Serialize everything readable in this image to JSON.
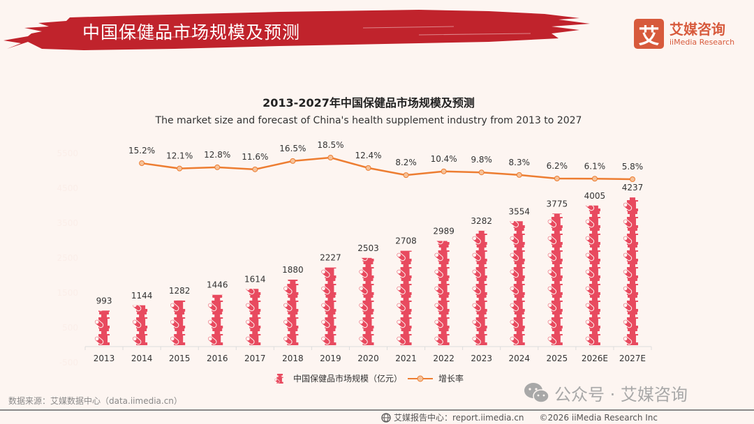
{
  "header": {
    "title": "中国保健品市场规模及预测",
    "brand_color": "#c0232c"
  },
  "logo": {
    "mark": "艾",
    "name_cn": "艾媒咨询",
    "name_en": "iiMedia Research",
    "color": "#d75a3c"
  },
  "chart_data": {
    "type": "bar+line",
    "title": "2013-2027年中国保健品市场规模及预测",
    "subtitle": "The market size and forecast of China's health supplement industry from 2013 to 2027",
    "categories": [
      "2013",
      "2014",
      "2015",
      "2016",
      "2017",
      "2018",
      "2019",
      "2020",
      "2021",
      "2022",
      "2023",
      "2024",
      "2025",
      "2026E",
      "2027E"
    ],
    "series": [
      {
        "name": "中国保健品市场规模（亿元）",
        "type": "pictorial-bar",
        "color": "#e84a5f",
        "values": [
          993,
          1144,
          1282,
          1446,
          1614,
          1880,
          2227,
          2503,
          2708,
          2989,
          3282,
          3554,
          3775,
          4005,
          4237
        ]
      },
      {
        "name": "增长率",
        "type": "line",
        "color": "#ed7d31",
        "values": [
          null,
          15.2,
          12.1,
          12.8,
          11.6,
          16.5,
          18.5,
          12.4,
          8.2,
          10.4,
          9.8,
          8.3,
          6.2,
          6.1,
          5.8
        ],
        "labels": [
          "",
          "15.2%",
          "12.1%",
          "12.8%",
          "11.6%",
          "16.5%",
          "18.5%",
          "12.4%",
          "8.2%",
          "10.4%",
          "9.8%",
          "8.3%",
          "6.2%",
          "6.1%",
          "5.8%"
        ]
      }
    ],
    "yaxis_ticks": [
      "5500",
      "4500",
      "3500",
      "2500",
      "1500",
      "500",
      "-500"
    ],
    "ylim": [
      -500,
      5500
    ],
    "legend": "bottom-center",
    "grid": false
  },
  "footer": {
    "source": "数据来源：艾媒数据中心（data.iimedia.cn）",
    "wechat": "公众号 · 艾媒咨询",
    "report_center": "艾媒报告中心：report.iimedia.cn",
    "copyright": "©2026  iiMedia Research  Inc"
  }
}
